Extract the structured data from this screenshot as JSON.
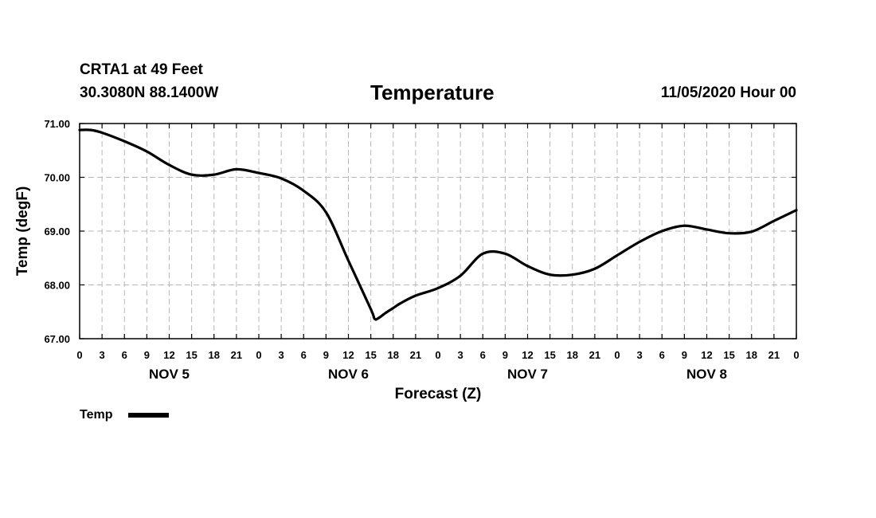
{
  "header": {
    "station": "CRTA1 at 49 Feet",
    "coords": "30.3080N 88.1400W",
    "title": "Temperature",
    "run": "11/05/2020 Hour 00"
  },
  "chart_data": {
    "type": "line",
    "title": "Temperature",
    "xlabel": "Forecast (Z)",
    "ylabel": "Temp (degF)",
    "x_unit": "forecast hour",
    "xlim": [
      0,
      96
    ],
    "ylim": [
      67.0,
      71.0
    ],
    "y_ticks": [
      "67.00",
      "68.00",
      "69.00",
      "70.00",
      "71.00"
    ],
    "x_tick_labels": [
      "0",
      "3",
      "6",
      "9",
      "12",
      "15",
      "18",
      "21",
      "0",
      "3",
      "6",
      "9",
      "12",
      "15",
      "18",
      "21",
      "0",
      "3",
      "6",
      "9",
      "12",
      "15",
      "18",
      "21",
      "0",
      "3",
      "6",
      "9",
      "12",
      "15",
      "18",
      "21",
      "0"
    ],
    "day_labels": [
      {
        "label": "NOV 5",
        "hour": 12
      },
      {
        "label": "NOV 6",
        "hour": 36
      },
      {
        "label": "NOV 7",
        "hour": 60
      },
      {
        "label": "NOV 8",
        "hour": 84
      }
    ],
    "grid": true,
    "legend_position": "bottom-left",
    "series": [
      {
        "name": "Temp",
        "color": "#000000",
        "x": [
          0,
          1.5,
          3,
          6,
          9,
          12,
          15,
          18,
          21,
          24,
          27,
          30,
          33,
          36,
          39,
          39.5,
          40,
          41,
          42,
          43,
          45,
          48,
          51,
          54,
          57,
          60,
          63,
          66,
          69,
          72,
          75,
          78,
          81,
          84,
          87,
          90,
          93,
          96
        ],
        "y": [
          70.88,
          70.88,
          70.83,
          70.67,
          70.48,
          70.23,
          70.05,
          70.05,
          70.15,
          70.08,
          69.98,
          69.75,
          69.35,
          68.45,
          67.55,
          67.37,
          67.38,
          67.48,
          67.57,
          67.66,
          67.8,
          67.94,
          68.17,
          68.58,
          68.58,
          68.35,
          68.19,
          68.19,
          68.3,
          68.55,
          68.8,
          69.0,
          69.1,
          69.03,
          68.96,
          68.99,
          69.19,
          69.39
        ]
      }
    ]
  }
}
